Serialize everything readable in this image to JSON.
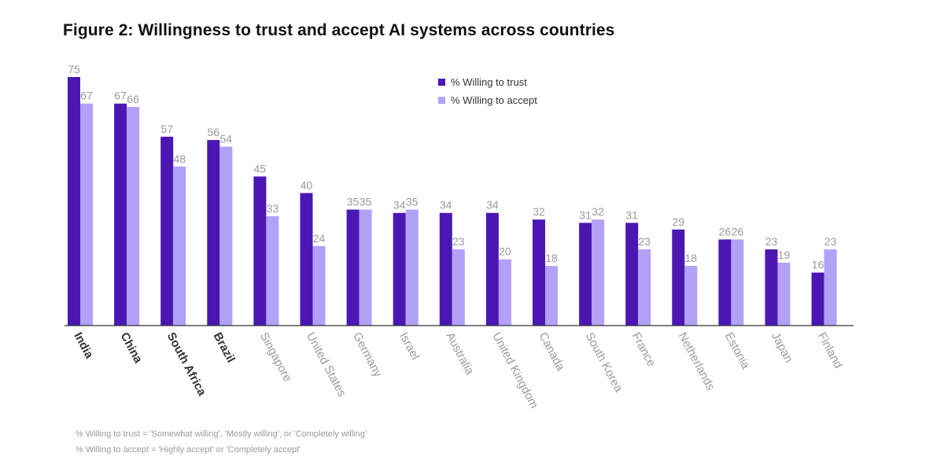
{
  "colors": {
    "trust": "#4a17b3",
    "accept": "#b3a0f7",
    "axis": "#333333",
    "value_label": "#999999",
    "bold_label": "#333333",
    "light_label": "#9a9a9a"
  },
  "chart_data": {
    "type": "bar",
    "title": "Figure 2: Willingness to trust and accept AI systems across countries",
    "xlabel": "",
    "ylabel": "",
    "ylim": [
      0,
      80
    ],
    "grid": false,
    "legend_position": "top-center",
    "categories": [
      "India",
      "China",
      "South Africa",
      "Brazil",
      "Singapore",
      "United States",
      "Germany",
      "Israel",
      "Australia",
      "United Kingdom",
      "Canada",
      "South Korea",
      "France",
      "Netherlands",
      "Estonia",
      "Japan",
      "Finland"
    ],
    "bold_categories": [
      "India",
      "China",
      "South Africa",
      "Brazil"
    ],
    "series": [
      {
        "name": "% Willing to trust",
        "values": [
          75,
          67,
          57,
          56,
          45,
          40,
          35,
          34,
          34,
          34,
          32,
          31,
          31,
          29,
          26,
          23,
          16
        ]
      },
      {
        "name": "% Willing to accept",
        "values": [
          67,
          66,
          48,
          54,
          33,
          24,
          35,
          35,
          23,
          20,
          18,
          32,
          23,
          18,
          26,
          19,
          23
        ]
      }
    ]
  },
  "footnotes": {
    "trust": "% Willing to trust = 'Somewhat willing', 'Mostly willing', or 'Completely willing'",
    "accept": "% Willing to accept = 'Highly accept' or 'Completely accept'"
  }
}
